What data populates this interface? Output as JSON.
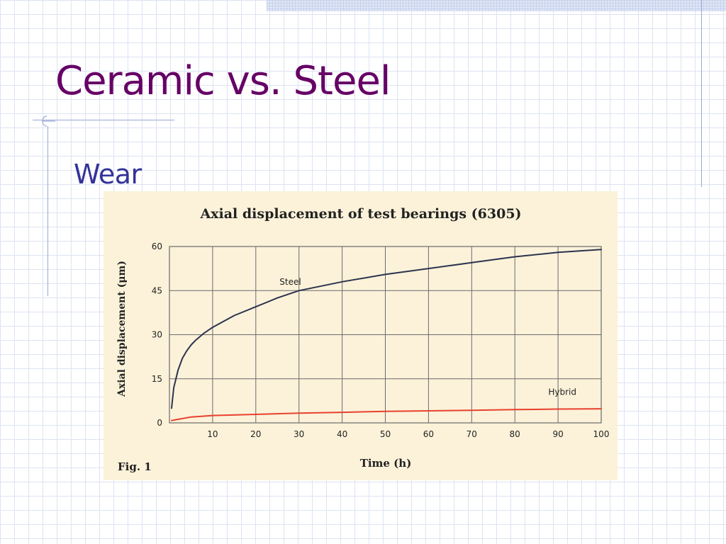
{
  "slide": {
    "title": "Ceramic vs. Steel",
    "bullet": "Wear"
  },
  "colors": {
    "title": "#660066",
    "bullet": "#333399",
    "figure_background": "#fbf2d9",
    "steel_line": "#2c3350",
    "hybrid_line": "#e8412e"
  },
  "chart_data": {
    "type": "line",
    "title": "Axial displacement of test bearings (6305)",
    "xlabel": "Time (h)",
    "ylabel": "Axial displacement (μm)",
    "figure_label": "Fig. 1",
    "xlim": [
      0,
      100
    ],
    "ylim": [
      0,
      60
    ],
    "x_ticks": [
      10,
      20,
      30,
      40,
      50,
      60,
      70,
      80,
      90,
      100
    ],
    "y_ticks": [
      0,
      15,
      30,
      45,
      60
    ],
    "grid": true,
    "legend": "inline labels",
    "series": [
      {
        "name": "Steel",
        "color": "#2c3350",
        "x": [
          0.5,
          1,
          2,
          3,
          4,
          5,
          6,
          8,
          10,
          15,
          20,
          25,
          30,
          40,
          50,
          60,
          70,
          80,
          90,
          100
        ],
        "y": [
          5,
          12,
          18,
          22,
          24.5,
          26.5,
          28,
          30.5,
          32.5,
          36.5,
          39.5,
          42.5,
          45,
          48,
          50.5,
          52.5,
          54.5,
          56.5,
          58,
          59
        ]
      },
      {
        "name": "Hybrid",
        "color": "#e8412e",
        "x": [
          0.5,
          2,
          5,
          10,
          20,
          30,
          40,
          50,
          60,
          70,
          80,
          90,
          100
        ],
        "y": [
          0.8,
          1.2,
          2,
          2.5,
          2.9,
          3.3,
          3.6,
          3.9,
          4.1,
          4.3,
          4.5,
          4.7,
          4.8
        ]
      }
    ]
  }
}
